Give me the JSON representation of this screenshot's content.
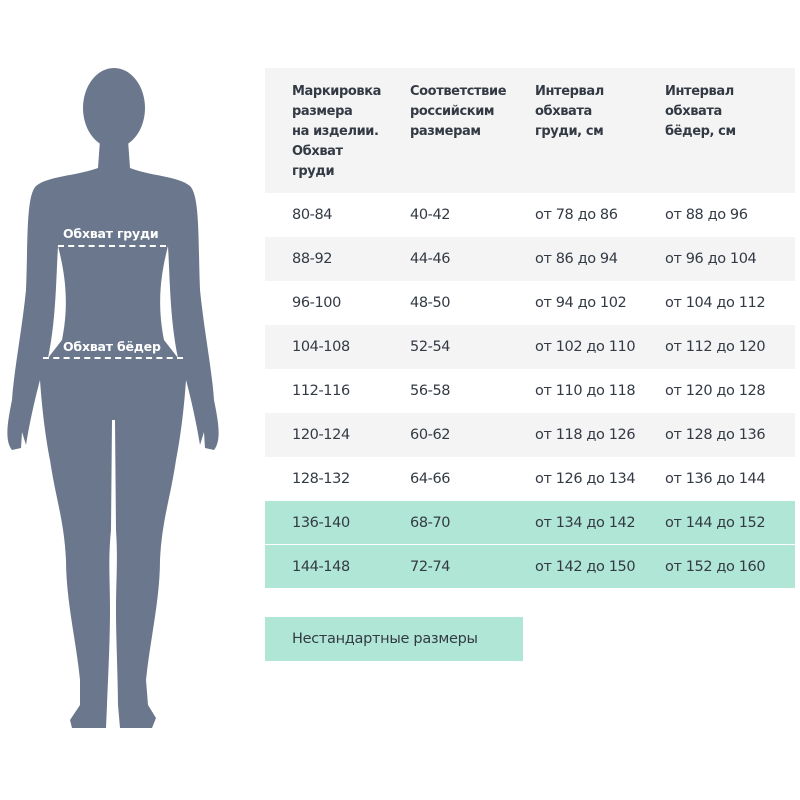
{
  "figure": {
    "color": "#6b778c",
    "chest_label": "Обхват груди",
    "hips_label": "Обхват бёдер"
  },
  "table": {
    "headers": [
      "Маркировка\nразмера\nна изделии.\nОбхват\nгруди",
      "Соответствие\nроссийским\nразмерам",
      "Интервал\nобхвата\nгруди, см",
      "Интервал\nобхвата\nбёдер, см"
    ],
    "rows": [
      [
        "80-84",
        "40-42",
        "от 78 до 86",
        "от 88 до 96"
      ],
      [
        "88-92",
        "44-46",
        "от 86 до 94",
        "от 96 до 104"
      ],
      [
        "96-100",
        "48-50",
        "от 94 до 102",
        "от 104 до 112"
      ],
      [
        "104-108",
        "52-54",
        "от 102 до 110",
        "от 112 до 120"
      ],
      [
        "112-116",
        "56-58",
        "от 110 до 118",
        "от 120 до 128"
      ],
      [
        "120-124",
        "60-62",
        "от 118 до 126",
        "от 128 до 136"
      ],
      [
        "128-132",
        "64-66",
        "от 126 до 134",
        "от 136 до 144"
      ],
      [
        "136-140",
        "68-70",
        "от 134 до 142",
        "от 144 до 152"
      ],
      [
        "144-148",
        "72-74",
        "от 142 до 150",
        "от 152 до 160"
      ]
    ],
    "highlight_color": "#b0e6d6"
  },
  "nonstandard_button": "Нестандартные размеры"
}
